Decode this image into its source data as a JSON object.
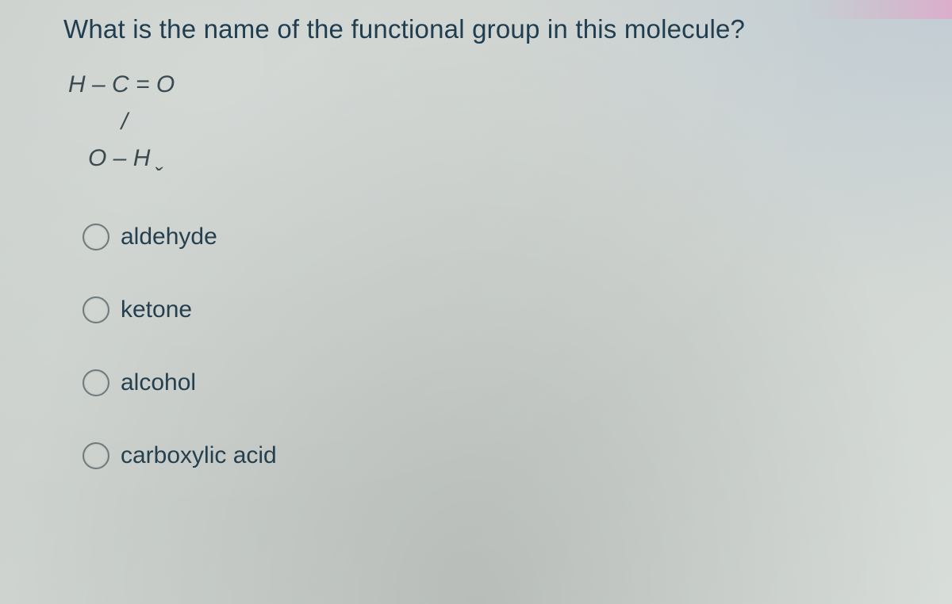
{
  "question": "What is the name of the functional group in this molecule?",
  "molecule": {
    "line1": "H – C = O",
    "line2": "        /",
    "line3": "   O – H ˬ"
  },
  "options": [
    {
      "id": "aldehyde",
      "label": "aldehyde"
    },
    {
      "id": "ketone",
      "label": "ketone"
    },
    {
      "id": "alcohol",
      "label": "alcohol"
    },
    {
      "id": "carboxylic-acid",
      "label": "carboxylic acid"
    }
  ],
  "colors": {
    "text": "#203e50",
    "radio_border": "#6e7a7c",
    "background_from": "#c8cdc9",
    "background_to": "#d8ddd9"
  }
}
